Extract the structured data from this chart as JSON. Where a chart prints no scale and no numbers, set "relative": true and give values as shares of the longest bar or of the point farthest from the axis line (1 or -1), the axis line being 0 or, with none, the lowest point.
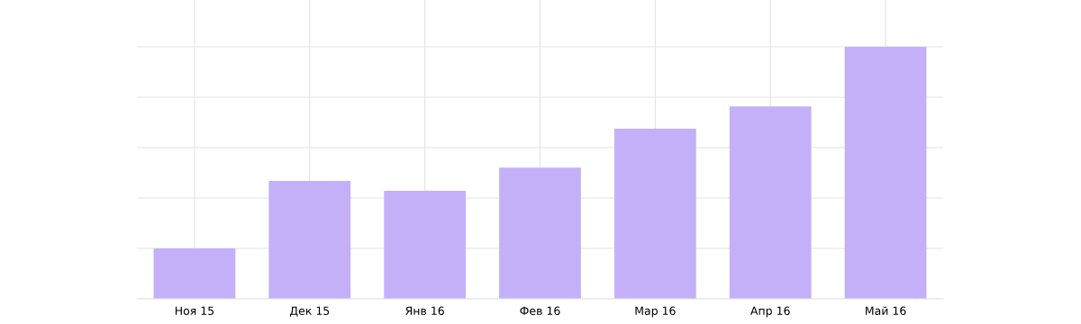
{
  "chart_data": {
    "type": "bar",
    "relative": true,
    "categories": [
      "Ноя 15",
      "Дек 15",
      "Янв 16",
      "Фев 16",
      "Мар 16",
      "Апр 16",
      "Май 16"
    ],
    "values": [
      0.2,
      0.468,
      0.429,
      0.521,
      0.675,
      0.764,
      1.0
    ],
    "color": "#c4b0f9",
    "grid": true,
    "tick_labels": "x"
  }
}
